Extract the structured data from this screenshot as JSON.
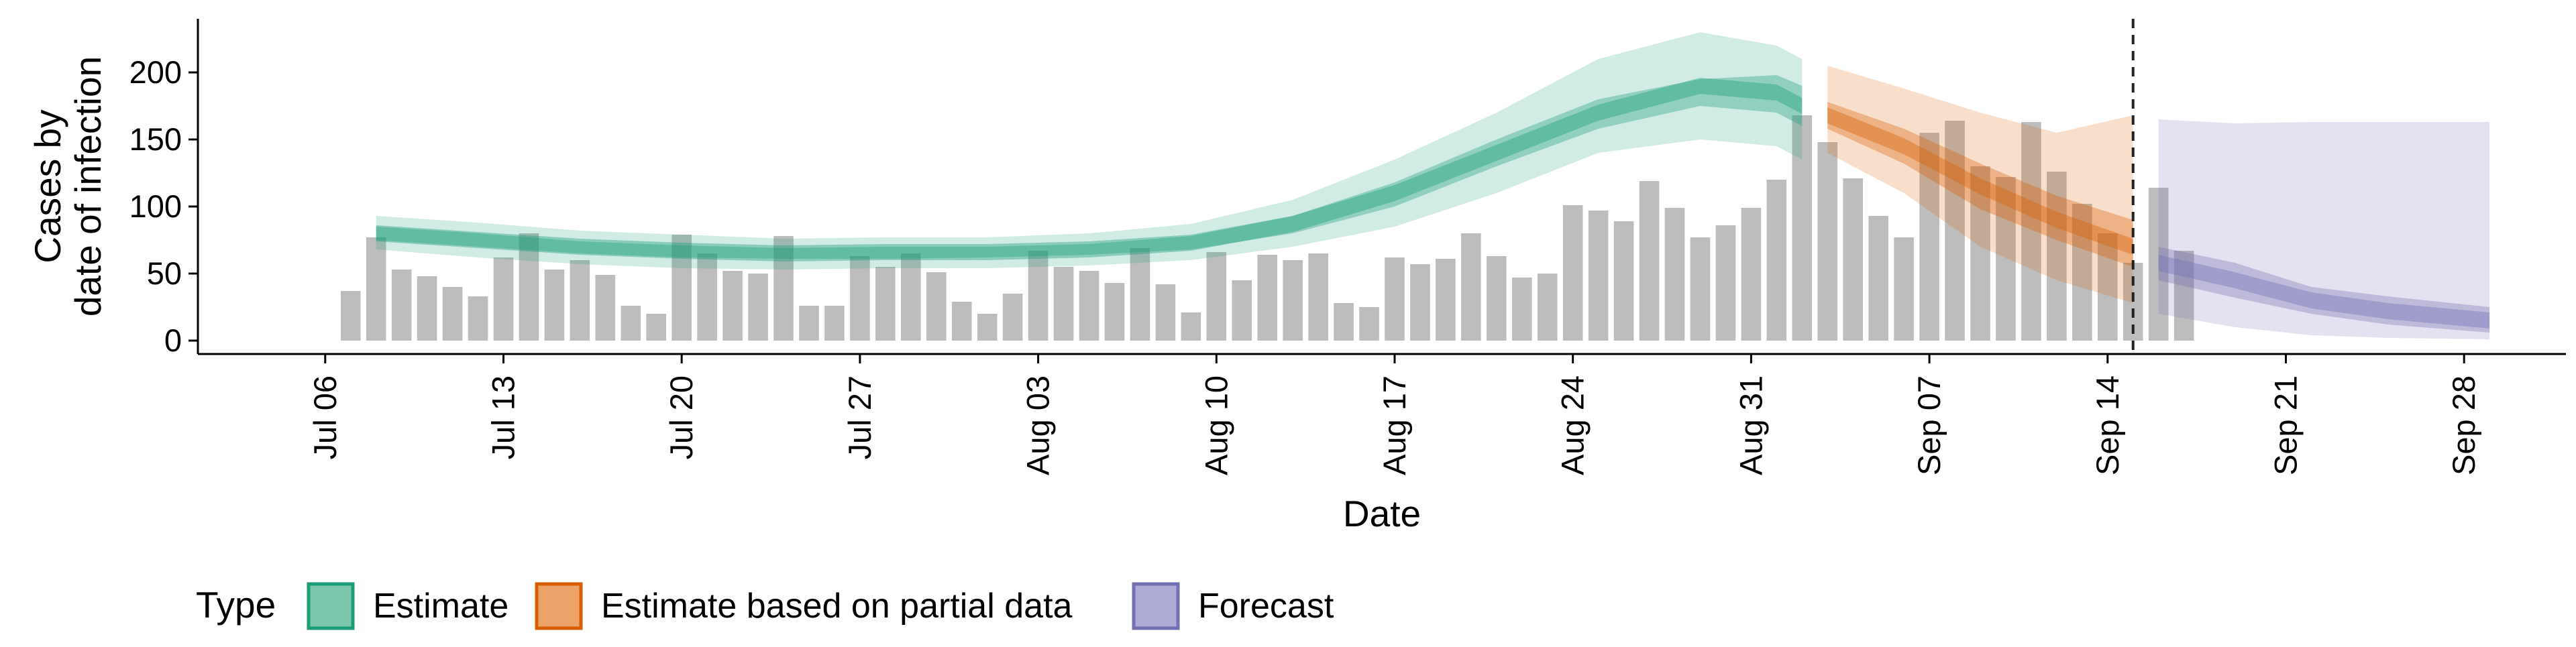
{
  "chart_data": {
    "type": "bar",
    "title": "",
    "xlabel": "Date",
    "ylabel_lines": [
      "Cases by",
      "date of infection"
    ],
    "x_range": [
      "2020-07-01",
      "2020-10-02"
    ],
    "ylim": [
      -10,
      240
    ],
    "y_ticks": [
      0,
      50,
      100,
      150,
      200
    ],
    "x_ticks": [
      {
        "date": "2020-07-06",
        "label": "Jul 06"
      },
      {
        "date": "2020-07-13",
        "label": "Jul 13"
      },
      {
        "date": "2020-07-20",
        "label": "Jul 20"
      },
      {
        "date": "2020-07-27",
        "label": "Jul 27"
      },
      {
        "date": "2020-08-03",
        "label": "Aug 03"
      },
      {
        "date": "2020-08-10",
        "label": "Aug 10"
      },
      {
        "date": "2020-08-17",
        "label": "Aug 17"
      },
      {
        "date": "2020-08-24",
        "label": "Aug 24"
      },
      {
        "date": "2020-08-31",
        "label": "Aug 31"
      },
      {
        "date": "2020-09-07",
        "label": "Sep 07"
      },
      {
        "date": "2020-09-14",
        "label": "Sep 14"
      },
      {
        "date": "2020-09-21",
        "label": "Sep 21"
      },
      {
        "date": "2020-09-28",
        "label": "Sep 28"
      }
    ],
    "grid": false,
    "legend_position": "bottom-left",
    "legend_title": "Type",
    "legend": [
      {
        "label": "Estimate",
        "fill": "#7cc6ac",
        "stroke": "#1b9e77"
      },
      {
        "label": "Estimate based on partial data",
        "fill": "#eca36a",
        "stroke": "#d95f02"
      },
      {
        "label": "Forecast",
        "fill": "#aeabd6",
        "stroke": "#7570b3"
      }
    ],
    "vline_date": "2020-09-15",
    "bar_color": "#bdbdbd",
    "bars": {
      "start_date": "2020-07-07",
      "values": [
        37,
        77,
        53,
        48,
        40,
        33,
        62,
        80,
        53,
        60,
        49,
        26,
        20,
        79,
        65,
        52,
        50,
        78,
        26,
        26,
        63,
        55,
        65,
        51,
        29,
        20,
        35,
        67,
        55,
        52,
        43,
        69,
        42,
        21,
        66,
        45,
        64,
        60,
        65,
        28,
        25,
        62,
        57,
        61,
        80,
        63,
        47,
        50,
        101,
        97,
        89,
        119,
        99,
        77,
        86,
        99,
        120,
        168,
        148,
        121,
        93,
        77,
        155,
        164,
        130,
        122,
        163,
        126,
        102,
        80,
        58,
        114,
        67
      ]
    },
    "series": [
      {
        "name": "Estimate",
        "fill": "#1b9e77",
        "x": [
          "2020-07-08",
          "2020-07-12",
          "2020-07-16",
          "2020-07-20",
          "2020-07-24",
          "2020-07-28",
          "2020-08-01",
          "2020-08-05",
          "2020-08-09",
          "2020-08-13",
          "2020-08-17",
          "2020-08-21",
          "2020-08-25",
          "2020-08-29",
          "2020-09-01",
          "2020-09-02"
        ],
        "median": [
          80,
          75,
          70,
          67,
          65,
          66,
          66,
          68,
          73,
          87,
          110,
          140,
          170,
          190,
          185,
          175
        ],
        "lower_50": [
          75,
          70,
          65,
          62,
          61,
          61,
          62,
          64,
          68,
          80,
          100,
          130,
          158,
          175,
          170,
          160
        ],
        "upper_50": [
          85,
          80,
          74,
          71,
          69,
          70,
          70,
          72,
          78,
          93,
          118,
          150,
          180,
          195,
          198,
          190
        ],
        "lower_90": [
          68,
          62,
          57,
          54,
          53,
          54,
          54,
          56,
          60,
          70,
          85,
          110,
          140,
          150,
          145,
          135
        ],
        "upper_90": [
          93,
          88,
          82,
          79,
          76,
          77,
          77,
          80,
          87,
          105,
          135,
          170,
          210,
          230,
          220,
          210
        ]
      },
      {
        "name": "Estimate based on partial data",
        "fill": "#d95f02",
        "x": [
          "2020-09-03",
          "2020-09-06",
          "2020-09-09",
          "2020-09-12",
          "2020-09-15"
        ],
        "median": [
          168,
          145,
          115,
          90,
          70
        ],
        "lower_50": [
          158,
          132,
          98,
          75,
          55
        ],
        "upper_50": [
          178,
          158,
          132,
          108,
          90
        ],
        "lower_90": [
          140,
          110,
          70,
          45,
          28
        ],
        "upper_90": [
          205,
          188,
          170,
          155,
          168
        ]
      },
      {
        "name": "Forecast",
        "fill": "#7570b3",
        "x": [
          "2020-09-16",
          "2020-09-19",
          "2020-09-22",
          "2020-09-25",
          "2020-09-29"
        ],
        "median": [
          58,
          45,
          30,
          22,
          15
        ],
        "lower_50": [
          45,
          32,
          20,
          12,
          6
        ],
        "upper_50": [
          70,
          58,
          40,
          33,
          25
        ],
        "lower_90": [
          20,
          10,
          4,
          2,
          1
        ],
        "upper_90": [
          165,
          162,
          163,
          163,
          163
        ]
      }
    ]
  }
}
